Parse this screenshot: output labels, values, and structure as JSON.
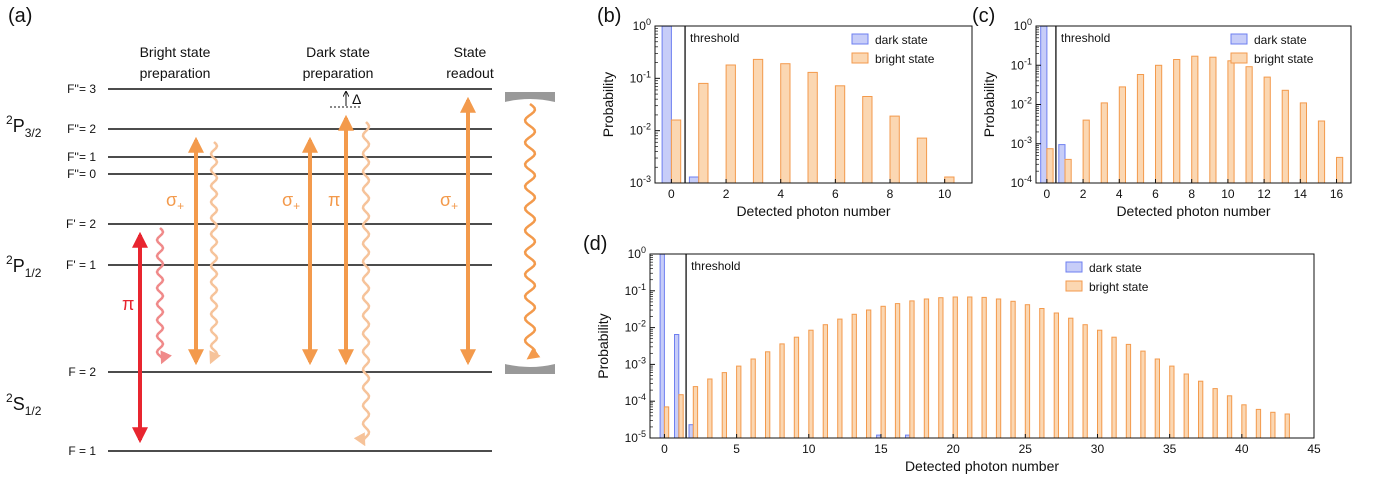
{
  "diagram": {
    "panel_label": "(a)",
    "columns": [
      {
        "line1": "Bright state",
        "line2": "preparation"
      },
      {
        "line1": "Dark state",
        "line2": "preparation"
      },
      {
        "line1": "State",
        "line2": "readout"
      }
    ],
    "manifolds": [
      {
        "base": "2",
        "main": "P",
        "sub": "3/2"
      },
      {
        "base": "2",
        "main": "P",
        "sub": "1/2"
      },
      {
        "base": "2",
        "main": "S",
        "sub": "1/2"
      }
    ],
    "levels": [
      "F''= 3",
      "F''= 2",
      "F''= 1",
      "F''= 0",
      "F' = 2",
      "F' = 1",
      "F = 2",
      "F = 1"
    ],
    "delta": "Δ",
    "pol_sigma": "σ",
    "pol_sigma_sub": "+",
    "pol_pi": "π",
    "colors": {
      "orange": "#f39a4c",
      "light_orange": "#f6c39a",
      "red": "#e8252f",
      "pink": "#f08a8a",
      "mirror": "#999999"
    }
  },
  "chart_data": [
    {
      "panel": "(b)",
      "type": "bar",
      "xlabel": "Detected photon number",
      "ylabel": "Probability",
      "yscale": "log",
      "xlim": [
        -0.6,
        11
      ],
      "ylim": [
        0.001,
        1
      ],
      "xticks": [
        0,
        2,
        4,
        6,
        8,
        10
      ],
      "yticks": [
        {
          "base": "10",
          "exp": "0"
        },
        {
          "base": "10",
          "exp": "-1"
        },
        {
          "base": "10",
          "exp": "-2"
        },
        {
          "base": "10",
          "exp": "-3"
        }
      ],
      "threshold": {
        "x": 0.5,
        "label": "threshold"
      },
      "legend_position": "top-right",
      "series": [
        {
          "name": "dark state",
          "color": "#6e7ff0",
          "fill": "#c7cdf8",
          "x": [
            0,
            1
          ],
          "values": [
            0.99,
            0.0013
          ]
        },
        {
          "name": "bright state",
          "color": "#f39a4c",
          "fill": "#fbd7b2",
          "x": [
            0,
            1,
            2,
            3,
            4,
            5,
            6,
            7,
            8,
            9,
            10
          ],
          "values": [
            0.016,
            0.08,
            0.18,
            0.23,
            0.19,
            0.13,
            0.072,
            0.045,
            0.019,
            0.0072,
            0.0013
          ]
        }
      ]
    },
    {
      "panel": "(c)",
      "type": "bar",
      "xlabel": "Detected photon number",
      "ylabel": "Probability",
      "yscale": "log",
      "xlim": [
        -0.6,
        16.8
      ],
      "ylim": [
        0.0001,
        1
      ],
      "xticks": [
        0,
        2,
        4,
        6,
        8,
        10,
        12,
        14,
        16
      ],
      "yticks": [
        {
          "base": "10",
          "exp": "0"
        },
        {
          "base": "10",
          "exp": "-1"
        },
        {
          "base": "10",
          "exp": "-2"
        },
        {
          "base": "10",
          "exp": "-3"
        },
        {
          "base": "10",
          "exp": "-4"
        }
      ],
      "threshold": {
        "x": 0.5,
        "label": "threshold"
      },
      "legend_position": "top-right",
      "series": [
        {
          "name": "dark state",
          "color": "#6e7ff0",
          "fill": "#c7cdf8",
          "x": [
            0,
            1
          ],
          "values": [
            0.99,
            0.00095
          ]
        },
        {
          "name": "bright state",
          "color": "#f39a4c",
          "fill": "#fbd7b2",
          "x": [
            0,
            1,
            2,
            3,
            4,
            5,
            6,
            7,
            8,
            9,
            10,
            11,
            12,
            13,
            14,
            15,
            16
          ],
          "values": [
            0.00075,
            0.0004,
            0.004,
            0.011,
            0.028,
            0.058,
            0.1,
            0.14,
            0.17,
            0.16,
            0.13,
            0.092,
            0.05,
            0.023,
            0.011,
            0.0038,
            0.00045
          ]
        }
      ]
    },
    {
      "panel": "(d)",
      "type": "bar",
      "xlabel": "Detected photon number",
      "ylabel": "Probability",
      "yscale": "log",
      "xlim": [
        -1,
        45
      ],
      "ylim": [
        1e-05,
        1
      ],
      "xticks": [
        0,
        5,
        10,
        15,
        20,
        25,
        30,
        35,
        40,
        45
      ],
      "yticks": [
        {
          "base": "10",
          "exp": "0"
        },
        {
          "base": "10",
          "exp": "-1"
        },
        {
          "base": "10",
          "exp": "-2"
        },
        {
          "base": "10",
          "exp": "-3"
        },
        {
          "base": "10",
          "exp": "-4"
        },
        {
          "base": "10",
          "exp": "-5"
        }
      ],
      "threshold": {
        "x": 1.5,
        "label": "threshold"
      },
      "legend_position": "top-right",
      "series": [
        {
          "name": "dark state",
          "color": "#6e7ff0",
          "fill": "#c7cdf8",
          "x": [
            0,
            1,
            2,
            15,
            17
          ],
          "values": [
            0.99,
            0.0065,
            2.3e-05,
            1.2e-05,
            1.2e-05
          ]
        },
        {
          "name": "bright state",
          "color": "#f39a4c",
          "fill": "#fbd7b2",
          "x": [
            0,
            1,
            2,
            3,
            4,
            5,
            6,
            7,
            8,
            9,
            10,
            11,
            12,
            13,
            14,
            15,
            16,
            17,
            18,
            19,
            20,
            21,
            22,
            23,
            24,
            25,
            26,
            27,
            28,
            29,
            30,
            31,
            32,
            33,
            34,
            35,
            36,
            37,
            38,
            39,
            40,
            41,
            42,
            43
          ],
          "values": [
            7e-05,
            0.00015,
            0.00025,
            0.0004,
            0.0006,
            0.0009,
            0.0014,
            0.0022,
            0.0036,
            0.0055,
            0.0085,
            0.012,
            0.017,
            0.023,
            0.03,
            0.038,
            0.045,
            0.053,
            0.06,
            0.065,
            0.068,
            0.068,
            0.066,
            0.06,
            0.052,
            0.042,
            0.033,
            0.025,
            0.018,
            0.012,
            0.0085,
            0.0055,
            0.0035,
            0.0023,
            0.0014,
            0.0009,
            0.00055,
            0.00035,
            0.00022,
            0.00014,
            8e-05,
            6e-05,
            5e-05,
            4.5e-05
          ]
        }
      ]
    }
  ]
}
